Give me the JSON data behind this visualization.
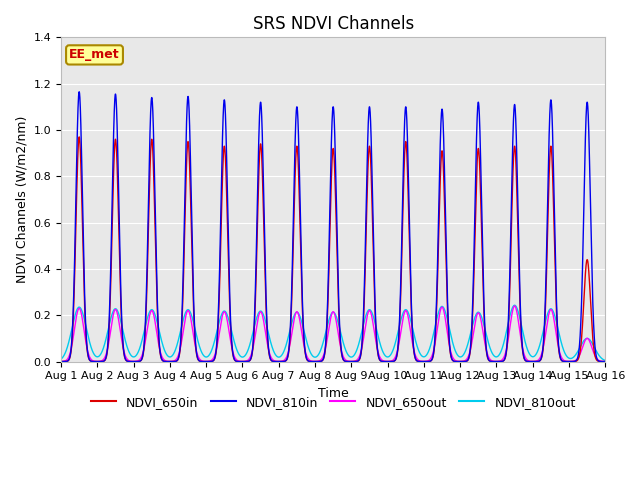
{
  "title": "SRS NDVI Channels",
  "xlabel": "Time",
  "ylabel": "NDVI Channels (W/m2/nm)",
  "ylim": [
    0,
    1.4
  ],
  "yticks": [
    0.0,
    0.2,
    0.4,
    0.6,
    0.8,
    1.0,
    1.2,
    1.4
  ],
  "xtick_labels": [
    "Aug 1",
    "Aug 2",
    "Aug 3",
    "Aug 4",
    "Aug 5",
    "Aug 6",
    "Aug 7",
    "Aug 8",
    "Aug 9",
    "Aug 10",
    "Aug 11",
    "Aug 12",
    "Aug 13",
    "Aug 14",
    "Aug 15",
    "Aug 16"
  ],
  "n_days": 15,
  "annotation_text": "EE_met",
  "annotation_color": "#cc0000",
  "annotation_bg": "#ffff99",
  "annotation_border": "#aa8800",
  "line_colors": {
    "NDVI_650in": "#dd0000",
    "NDVI_810in": "#0000ee",
    "NDVI_650out": "#ff00ff",
    "NDVI_810out": "#00ccee"
  },
  "peak_heights": {
    "NDVI_650in": [
      0.97,
      0.96,
      0.96,
      0.95,
      0.93,
      0.94,
      0.93,
      0.92,
      0.93,
      0.95,
      0.91,
      0.92,
      0.93,
      0.93,
      0.44
    ],
    "NDVI_810in": [
      1.165,
      1.155,
      1.14,
      1.145,
      1.13,
      1.12,
      1.1,
      1.1,
      1.1,
      1.1,
      1.09,
      1.12,
      1.11,
      1.13,
      1.12
    ],
    "NDVI_650out": [
      0.23,
      0.225,
      0.22,
      0.22,
      0.215,
      0.215,
      0.215,
      0.215,
      0.22,
      0.22,
      0.235,
      0.21,
      0.24,
      0.225,
      0.1
    ],
    "NDVI_810out": [
      0.235,
      0.228,
      0.224,
      0.224,
      0.218,
      0.218,
      0.213,
      0.213,
      0.224,
      0.224,
      0.238,
      0.213,
      0.243,
      0.228,
      0.1
    ]
  },
  "sigma_in": 0.09,
  "sigma_650out": 0.13,
  "sigma_810out": 0.2,
  "bg_color": "#e8e8e8",
  "fig_bg": "#ffffff",
  "grid_color": "#ffffff",
  "title_fontsize": 12,
  "label_fontsize": 9,
  "tick_fontsize": 8,
  "legend_fontsize": 9,
  "linewidth_in": 1.0,
  "linewidth_out": 1.0
}
